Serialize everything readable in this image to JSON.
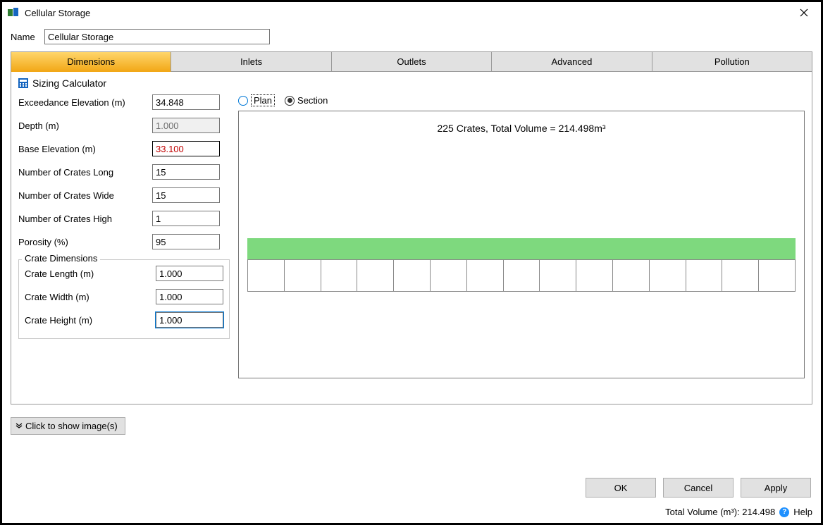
{
  "window": {
    "title": "Cellular Storage",
    "icon_colors": {
      "left": "#2e7d32",
      "right": "#1565c0"
    }
  },
  "header": {
    "name_label": "Name",
    "name_value": "Cellular Storage"
  },
  "tabs": {
    "items": [
      "Dimensions",
      "Inlets",
      "Outlets",
      "Advanced",
      "Pollution"
    ],
    "active_index": 0,
    "active_bg_gradient": [
      "#ffd66b",
      "#f2a818"
    ],
    "inactive_bg": "#e1e1e1"
  },
  "sizing_calculator": {
    "label": "Sizing Calculator",
    "icon_color": "#1565c0"
  },
  "fields": {
    "exceedance_elevation": {
      "label": "Exceedance Elevation (m)",
      "value": "34.848"
    },
    "depth": {
      "label": "Depth (m)",
      "value": "1.000",
      "readonly": true
    },
    "base_elevation": {
      "label": "Base Elevation (m)",
      "value": "33.100",
      "highlight": true
    },
    "crates_long": {
      "label": "Number of Crates Long",
      "value": "15"
    },
    "crates_wide": {
      "label": "Number of Crates Wide",
      "value": "15"
    },
    "crates_high": {
      "label": "Number of Crates High",
      "value": "1"
    },
    "porosity": {
      "label": "Porosity (%)",
      "value": "95"
    }
  },
  "crate_dimensions": {
    "legend": "Crate Dimensions",
    "length": {
      "label": "Crate Length (m)",
      "value": "1.000"
    },
    "width": {
      "label": "Crate Width (m)",
      "value": "1.000"
    },
    "height": {
      "label": "Crate Height (m)",
      "value": "1.000",
      "focused": true
    }
  },
  "view": {
    "plan_label": "Plan",
    "section_label": "Section",
    "selected": "section",
    "plan_radio_color": "#0078d7",
    "section_radio_color": "#333333"
  },
  "section_preview": {
    "title": "225 Crates, Total Volume = 214.498m³",
    "num_cells": 15,
    "fill_color": "#7ed97e",
    "border_color": "#888888",
    "background": "#ffffff"
  },
  "show_images": {
    "label": "Click to show image(s)",
    "chevron": "»"
  },
  "buttons": {
    "ok": "OK",
    "cancel": "Cancel",
    "apply": "Apply"
  },
  "status": {
    "total_volume_label": "Total Volume (m³): 214.498",
    "help_label": "Help"
  },
  "colors": {
    "window_border": "#000000",
    "input_border": "#767676",
    "panel_border": "#999999",
    "button_bg": "#e1e1e1",
    "button_border": "#adadad",
    "highlight_text": "#c00000",
    "focus_outline": "#0078d7"
  }
}
